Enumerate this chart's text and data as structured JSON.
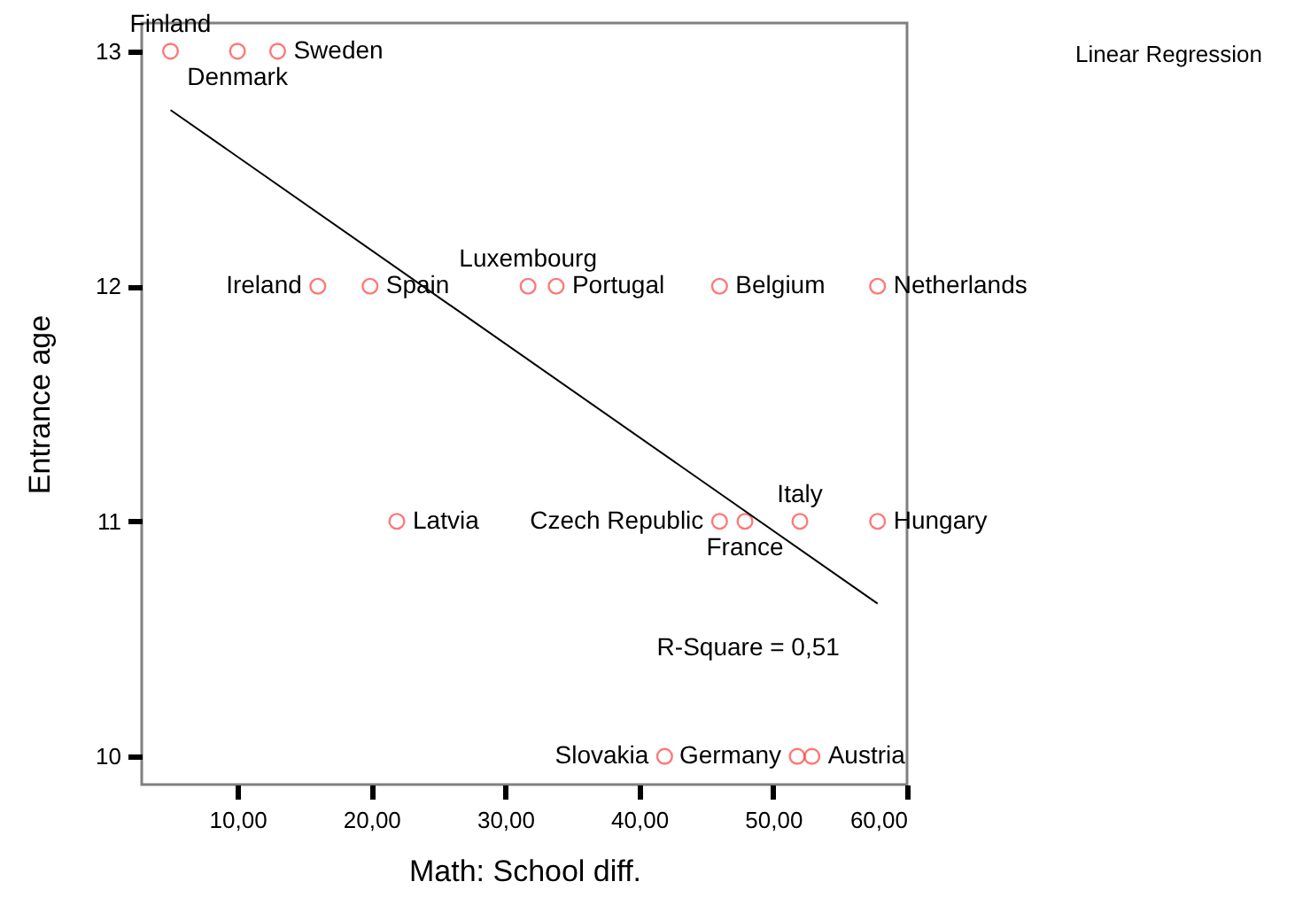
{
  "chart_data": {
    "type": "scatter",
    "xlabel": "Math: School diff.",
    "ylabel": "Entrance age",
    "xlim": [
      2.85,
      60
    ],
    "ylim": [
      9.88,
      13.12
    ],
    "xticks": [
      {
        "value": 10,
        "label": "10,00"
      },
      {
        "value": 20,
        "label": "20,00"
      },
      {
        "value": 30,
        "label": "30,00"
      },
      {
        "value": 40,
        "label": "40,00"
      },
      {
        "value": 50,
        "label": "50,00"
      },
      {
        "value": 60,
        "label": "60,00"
      }
    ],
    "yticks": [
      10,
      11,
      12,
      13
    ],
    "grid": false,
    "series": [
      {
        "type": "scatter",
        "color": "#ff4040",
        "marker": "circle",
        "x": [
          5.0,
          10.0,
          13.0,
          16.0,
          19.9,
          31.7,
          33.8,
          46.0,
          57.8,
          21.9,
          46.0,
          47.9,
          52.0,
          57.8,
          41.9,
          51.8,
          52.9
        ],
        "values": [
          13,
          13,
          13,
          12,
          12,
          12,
          12,
          12,
          12,
          11,
          11,
          11,
          11,
          11,
          10,
          10,
          10
        ],
        "value_labels": [
          "Finland",
          "Denmark",
          "Sweden",
          "Ireland",
          "Spain",
          "Luxembourg",
          "Portugal",
          "Belgium",
          "Netherlands",
          "Latvia",
          "Czech  Republic",
          "France",
          "Italy",
          "Hungary",
          "Slovakia",
          "Germany",
          "Austria"
        ]
      },
      {
        "type": "line",
        "color": "#000000",
        "x": [
          5.0,
          57.8
        ],
        "values": [
          12.75,
          10.65
        ]
      }
    ],
    "annotations": [
      {
        "text": "R-Square = 0,51",
        "x": 57.8,
        "y": 10.65
      },
      "Linear Regression"
    ]
  }
}
